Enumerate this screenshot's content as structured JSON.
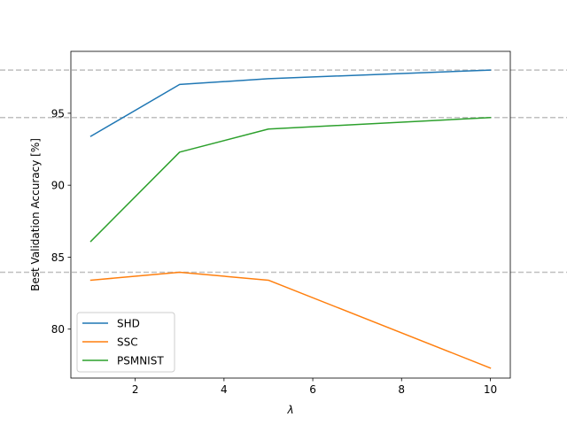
{
  "chart_data": {
    "type": "line",
    "xlabel": "λ",
    "ylabel": "Best Validation Accuracy [%]",
    "xlim": [
      0.55,
      10.45
    ],
    "ylim": [
      76.6,
      99.3
    ],
    "xticks": [
      2,
      4,
      6,
      8,
      10
    ],
    "yticks": [
      80,
      85,
      90,
      95
    ],
    "grid": false,
    "legend_position": "lower-left",
    "reference_lines": [
      {
        "y": 98.0,
        "color": "#bfbfbf",
        "style": "dashed"
      },
      {
        "y": 94.7,
        "color": "#bfbfbf",
        "style": "dashed"
      },
      {
        "y": 83.95,
        "color": "#bfbfbf",
        "style": "dashed"
      }
    ],
    "series": [
      {
        "name": "SHD",
        "color": "#1f77b4",
        "x": [
          1,
          3,
          5,
          10
        ],
        "y": [
          93.4,
          97.0,
          97.4,
          98.0
        ]
      },
      {
        "name": "SSC",
        "color": "#ff7f0e",
        "x": [
          1,
          3,
          5,
          10
        ],
        "y": [
          83.4,
          83.95,
          83.4,
          77.3
        ]
      },
      {
        "name": "PSMNIST",
        "color": "#2ca02c",
        "x": [
          1,
          3,
          5,
          10
        ],
        "y": [
          86.1,
          92.3,
          93.9,
          94.7
        ]
      }
    ]
  }
}
